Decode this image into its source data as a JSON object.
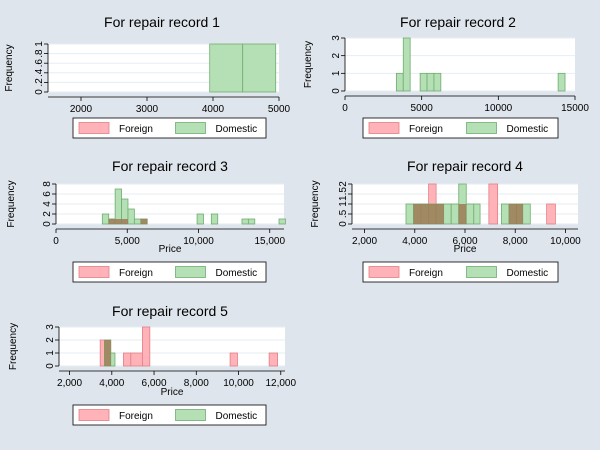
{
  "colors": {
    "background": "#dfe5ec",
    "plot_region": "#ffffff",
    "gridline": "#e6edf3",
    "foreign_fill": "#ffb3b8",
    "foreign_stroke": "#e27f86",
    "domestic_fill": "#b5dfb5",
    "domestic_stroke": "#6fad6f",
    "overlap_fill": "#9c7a55"
  },
  "legend": {
    "foreign_label": "Foreign",
    "domestic_label": "Domestic"
  },
  "chart_data": [
    {
      "type": "histogram",
      "title": "For repair record 1",
      "ylabel": "Frequency",
      "xlabel": "",
      "xlim": [
        1500,
        5000
      ],
      "ylim": [
        0,
        1
      ],
      "xticks": [
        2000,
        3000,
        4000,
        5000
      ],
      "xticklabels": [
        "2000",
        "3000",
        "4000",
        "5000"
      ],
      "yticks": [
        0,
        0.2,
        0.4,
        0.6,
        0.8,
        1
      ],
      "yticklabels": [
        "0",
        ".2",
        ".4",
        ".6",
        ".8",
        "1"
      ],
      "series": [
        {
          "name": "Foreign",
          "bars": []
        },
        {
          "name": "Domestic",
          "bars": [
            {
              "x0": 3950,
              "x1": 4450,
              "count": 1
            },
            {
              "x0": 4450,
              "x1": 4950,
              "count": 1
            }
          ]
        }
      ]
    },
    {
      "type": "histogram",
      "title": "For repair record 2",
      "ylabel": "Frequency",
      "xlabel": "",
      "xlim": [
        0,
        15000
      ],
      "ylim": [
        0,
        3
      ],
      "xticks": [
        0,
        5000,
        10000,
        15000
      ],
      "xticklabels": [
        "0",
        "5000",
        "10000",
        "15000"
      ],
      "yticks": [
        0,
        1,
        2,
        3
      ],
      "yticklabels": [
        "0",
        "1",
        "2",
        "3"
      ],
      "series": [
        {
          "name": "Foreign",
          "bars": []
        },
        {
          "name": "Domestic",
          "bars": [
            {
              "x0": 3350,
              "x1": 3800,
              "count": 1
            },
            {
              "x0": 3800,
              "x1": 4250,
              "count": 3
            },
            {
              "x0": 4900,
              "x1": 5350,
              "count": 1
            },
            {
              "x0": 5350,
              "x1": 5800,
              "count": 1
            },
            {
              "x0": 5800,
              "x1": 6250,
              "count": 1
            },
            {
              "x0": 13900,
              "x1": 14350,
              "count": 1
            }
          ]
        }
      ]
    },
    {
      "type": "histogram",
      "title": "For repair record 3",
      "ylabel": "Frequency",
      "xlabel": "Price",
      "xlim": [
        0,
        16000
      ],
      "ylim": [
        0,
        8
      ],
      "xticks": [
        0,
        5000,
        10000,
        15000
      ],
      "xticklabels": [
        "0",
        "5,000",
        "10,000",
        "15,000"
      ],
      "yticks": [
        0,
        2,
        4,
        6,
        8
      ],
      "yticklabels": [
        "0",
        "2",
        "4",
        "6",
        "8"
      ],
      "series": [
        {
          "name": "Foreign",
          "bars": [
            {
              "x0": 3700,
              "x1": 4150,
              "count": 1
            },
            {
              "x0": 4150,
              "x1": 4600,
              "count": 1
            },
            {
              "x0": 4600,
              "x1": 5050,
              "count": 1
            },
            {
              "x0": 5950,
              "x1": 6400,
              "count": 1
            }
          ]
        },
        {
          "name": "Domestic",
          "bars": [
            {
              "x0": 3250,
              "x1": 3700,
              "count": 2
            },
            {
              "x0": 3700,
              "x1": 4150,
              "count": 1
            },
            {
              "x0": 4150,
              "x1": 4600,
              "count": 7
            },
            {
              "x0": 4600,
              "x1": 5050,
              "count": 5
            },
            {
              "x0": 5050,
              "x1": 5500,
              "count": 3
            },
            {
              "x0": 5500,
              "x1": 5950,
              "count": 1
            },
            {
              "x0": 5950,
              "x1": 6400,
              "count": 1
            },
            {
              "x0": 9900,
              "x1": 10350,
              "count": 2
            },
            {
              "x0": 10900,
              "x1": 11350,
              "count": 2
            },
            {
              "x0": 13050,
              "x1": 13500,
              "count": 1
            },
            {
              "x0": 13500,
              "x1": 13950,
              "count": 1
            },
            {
              "x0": 15650,
              "x1": 16100,
              "count": 1
            }
          ]
        }
      ]
    },
    {
      "type": "histogram",
      "title": "For repair record 4",
      "ylabel": "Frequency",
      "xlabel": "Price",
      "xlim": [
        1500,
        10500
      ],
      "ylim": [
        0,
        2
      ],
      "xticks": [
        2000,
        4000,
        6000,
        8000,
        10000
      ],
      "xticklabels": [
        "2,000",
        "4,000",
        "6,000",
        "8,000",
        "10,000"
      ],
      "yticks": [
        0,
        0.5,
        1,
        1.5,
        2
      ],
      "yticklabels": [
        "0",
        ".5",
        "1",
        "1.5",
        "2"
      ],
      "series": [
        {
          "name": "Foreign",
          "bars": [
            {
              "x0": 3950,
              "x1": 4250,
              "count": 1
            },
            {
              "x0": 4250,
              "x1": 4550,
              "count": 1
            },
            {
              "x0": 4550,
              "x1": 4850,
              "count": 2
            },
            {
              "x0": 4850,
              "x1": 5150,
              "count": 1
            },
            {
              "x0": 5750,
              "x1": 6050,
              "count": 1
            },
            {
              "x0": 6950,
              "x1": 7300,
              "count": 2
            },
            {
              "x0": 7750,
              "x1": 8050,
              "count": 1
            },
            {
              "x0": 8050,
              "x1": 8300,
              "count": 1
            },
            {
              "x0": 9250,
              "x1": 9600,
              "count": 1
            }
          ]
        },
        {
          "name": "Domestic",
          "bars": [
            {
              "x0": 3650,
              "x1": 3950,
              "count": 1
            },
            {
              "x0": 3950,
              "x1": 4250,
              "count": 1
            },
            {
              "x0": 4250,
              "x1": 4550,
              "count": 1
            },
            {
              "x0": 4550,
              "x1": 4850,
              "count": 1
            },
            {
              "x0": 4850,
              "x1": 5150,
              "count": 1
            },
            {
              "x0": 5150,
              "x1": 5450,
              "count": 1
            },
            {
              "x0": 5450,
              "x1": 5750,
              "count": 1
            },
            {
              "x0": 5750,
              "x1": 6050,
              "count": 2
            },
            {
              "x0": 6050,
              "x1": 6350,
              "count": 1
            },
            {
              "x0": 6350,
              "x1": 6600,
              "count": 1
            },
            {
              "x0": 7450,
              "x1": 7750,
              "count": 1
            },
            {
              "x0": 7750,
              "x1": 8050,
              "count": 1
            },
            {
              "x0": 8050,
              "x1": 8300,
              "count": 1
            },
            {
              "x0": 8300,
              "x1": 8600,
              "count": 1
            }
          ]
        }
      ]
    },
    {
      "type": "histogram",
      "title": "For repair record 5",
      "ylabel": "Frequency",
      "xlabel": "Price",
      "xlim": [
        1500,
        12200
      ],
      "ylim": [
        0,
        3
      ],
      "xticks": [
        2000,
        4000,
        6000,
        8000,
        10000,
        12000
      ],
      "xticklabels": [
        "2,000",
        "4,000",
        "6,000",
        "8,000",
        "10,000",
        "12,000"
      ],
      "yticks": [
        0,
        1,
        2,
        3
      ],
      "yticklabels": [
        "0",
        "1",
        "2",
        "3"
      ],
      "series": [
        {
          "name": "Foreign",
          "bars": [
            {
              "x0": 3450,
              "x1": 3750,
              "count": 2
            },
            {
              "x0": 3750,
              "x1": 3950,
              "count": 2
            },
            {
              "x0": 4550,
              "x1": 4900,
              "count": 1
            },
            {
              "x0": 4900,
              "x1": 5450,
              "count": 1
            },
            {
              "x0": 5450,
              "x1": 5800,
              "count": 3
            },
            {
              "x0": 9600,
              "x1": 9950,
              "count": 1
            },
            {
              "x0": 11450,
              "x1": 11850,
              "count": 1
            }
          ]
        },
        {
          "name": "Domestic",
          "bars": [
            {
              "x0": 3650,
              "x1": 3950,
              "count": 2
            },
            {
              "x0": 3950,
              "x1": 4150,
              "count": 1
            }
          ]
        }
      ]
    }
  ]
}
